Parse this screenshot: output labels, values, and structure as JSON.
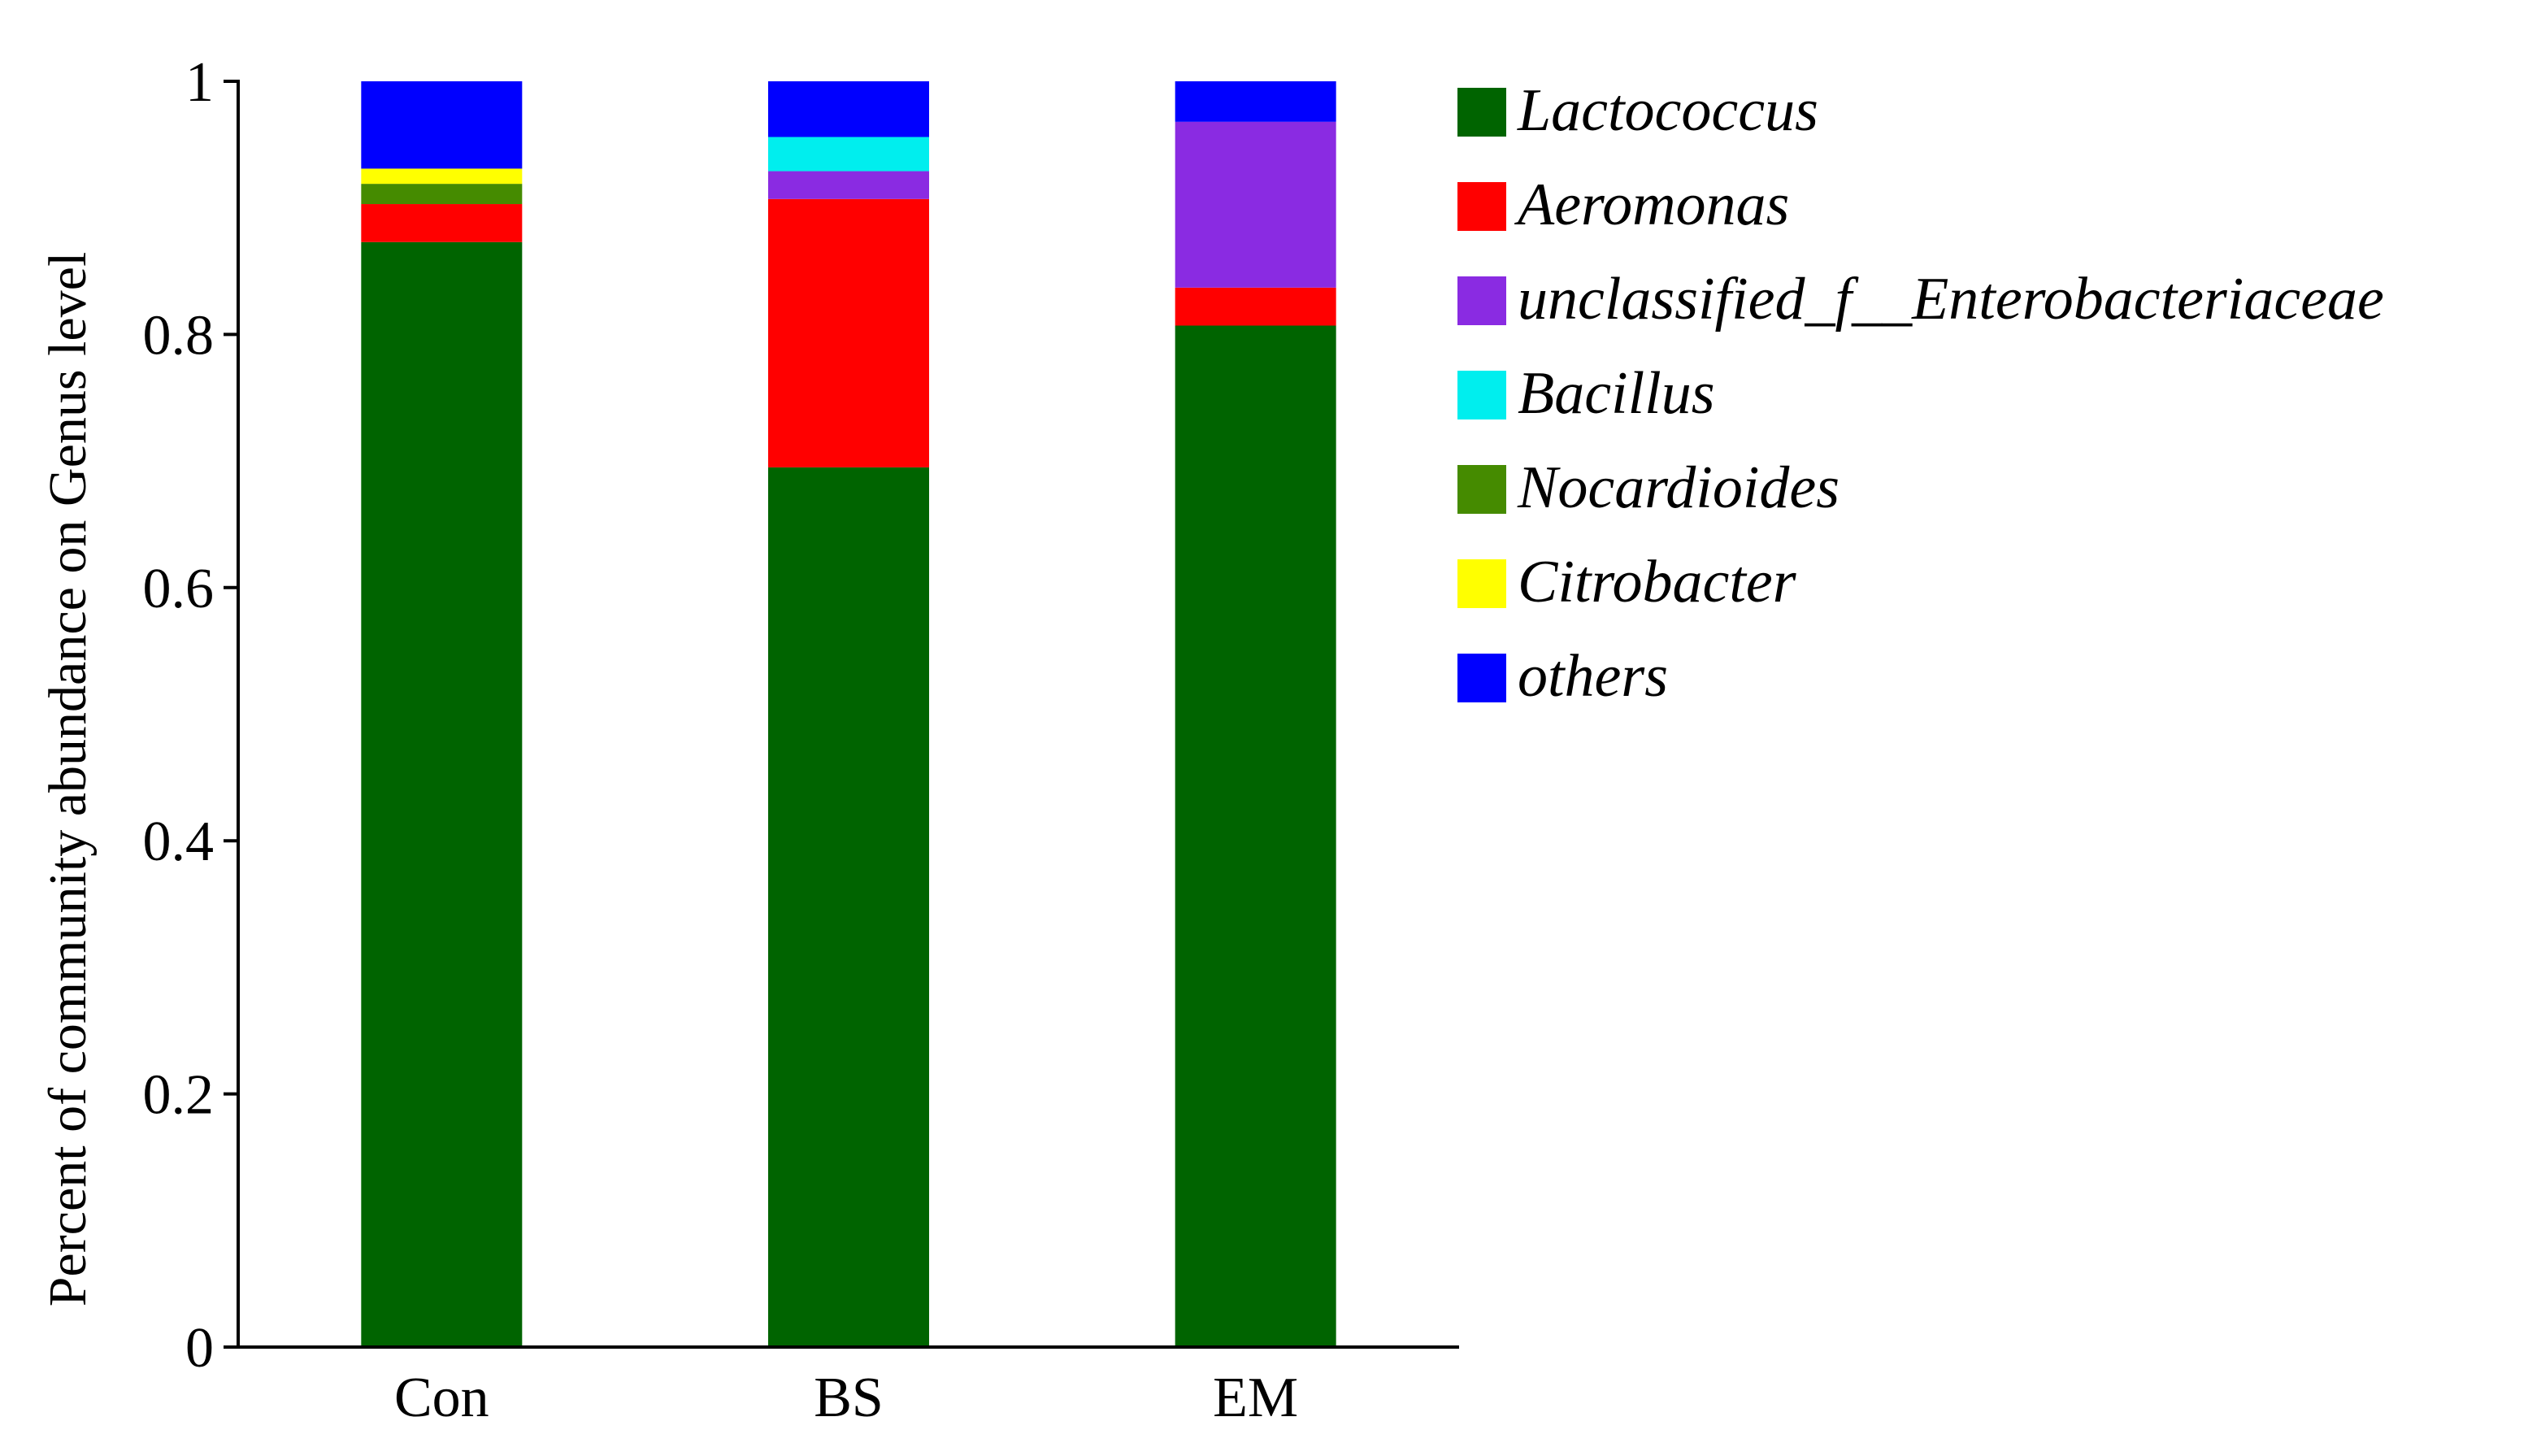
{
  "chart_data": {
    "type": "stacked-bar",
    "title": "",
    "xlabel": "",
    "ylabel": "Percent of community abundance on Genus level",
    "ylim": [
      0,
      1
    ],
    "yticks": [
      "0",
      "0.2",
      "0.4",
      "0.6",
      "0.8",
      "1"
    ],
    "categories": [
      "Con",
      "BS",
      "EM"
    ],
    "legend_position": "right",
    "series": [
      {
        "name": "Lactococcus",
        "color": "#006400",
        "values": [
          0.873,
          0.695,
          0.807
        ]
      },
      {
        "name": "Aeromonas",
        "color": "#ff0000",
        "values": [
          0.03,
          0.212,
          0.03
        ]
      },
      {
        "name": "unclassified_f__Enterobacteriaceae",
        "color": "#8a2be2",
        "values": [
          0.0,
          0.022,
          0.131
        ]
      },
      {
        "name": "Bacillus",
        "color": "#00eeee",
        "values": [
          0.0,
          0.027,
          0.0
        ]
      },
      {
        "name": "Nocardioides",
        "color": "#458b00",
        "values": [
          0.016,
          0.0,
          0.0
        ]
      },
      {
        "name": "Citrobacter",
        "color": "#ffff00",
        "values": [
          0.012,
          0.0,
          0.0
        ]
      },
      {
        "name": "others",
        "color": "#0000ff",
        "values": [
          0.069,
          0.044,
          0.032
        ]
      }
    ]
  }
}
